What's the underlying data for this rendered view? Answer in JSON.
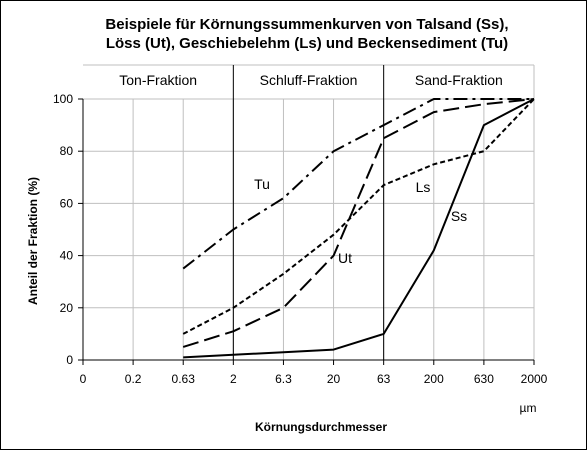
{
  "chart_data": {
    "type": "line",
    "title": [
      "Beispiele für Körnungssummenkurven von Talsand (Ss),",
      "Löss (Ut), Geschiebelehm (Ls) und Beckensediment (Tu)"
    ],
    "xlabel": "Körnungsdurchmesser",
    "xunit": "µm",
    "ylabel": "Anteil der Fraktion (%)",
    "ylim": [
      0,
      100
    ],
    "yticks": [
      "0",
      "20",
      "40",
      "60",
      "80",
      "100"
    ],
    "x_categories": [
      "0",
      "0.2",
      "0.63",
      "2",
      "6.3",
      "20",
      "63",
      "200",
      "630",
      "2000"
    ],
    "regions": [
      {
        "label": "Ton-Fraktion",
        "from": "0",
        "to": "2"
      },
      {
        "label": "Schluff-Fraktion",
        "from": "2",
        "to": "63"
      },
      {
        "label": "Sand-Fraktion",
        "from": "63",
        "to": "2000"
      }
    ],
    "grid": true,
    "legend": "none",
    "series": [
      {
        "name": "Tu",
        "style": "dash-dot",
        "x": [
          "0.63",
          "2",
          "6.3",
          "20",
          "63",
          "200",
          "630",
          "2000"
        ],
        "values": [
          35,
          50,
          62,
          80,
          90,
          100,
          100,
          100
        ]
      },
      {
        "name": "Ut",
        "style": "long-dash",
        "x": [
          "0.63",
          "2",
          "6.3",
          "20",
          "63",
          "200",
          "630",
          "2000"
        ],
        "values": [
          5,
          11,
          20,
          40,
          85,
          95,
          98,
          100
        ]
      },
      {
        "name": "Ls",
        "style": "short-dash",
        "x": [
          "0.63",
          "2",
          "6.3",
          "20",
          "63",
          "200",
          "630",
          "2000"
        ],
        "values": [
          10,
          20,
          33,
          48,
          67,
          75,
          80,
          100
        ]
      },
      {
        "name": "Ss",
        "style": "solid",
        "x": [
          "0.63",
          "2",
          "6.3",
          "20",
          "63",
          "200",
          "630",
          "2000"
        ],
        "values": [
          1,
          2,
          3,
          4,
          10,
          42,
          90,
          100
        ]
      }
    ],
    "colors": {
      "lines": "#000000",
      "grid": "#bfbfbf",
      "background": "#ffffff"
    }
  }
}
